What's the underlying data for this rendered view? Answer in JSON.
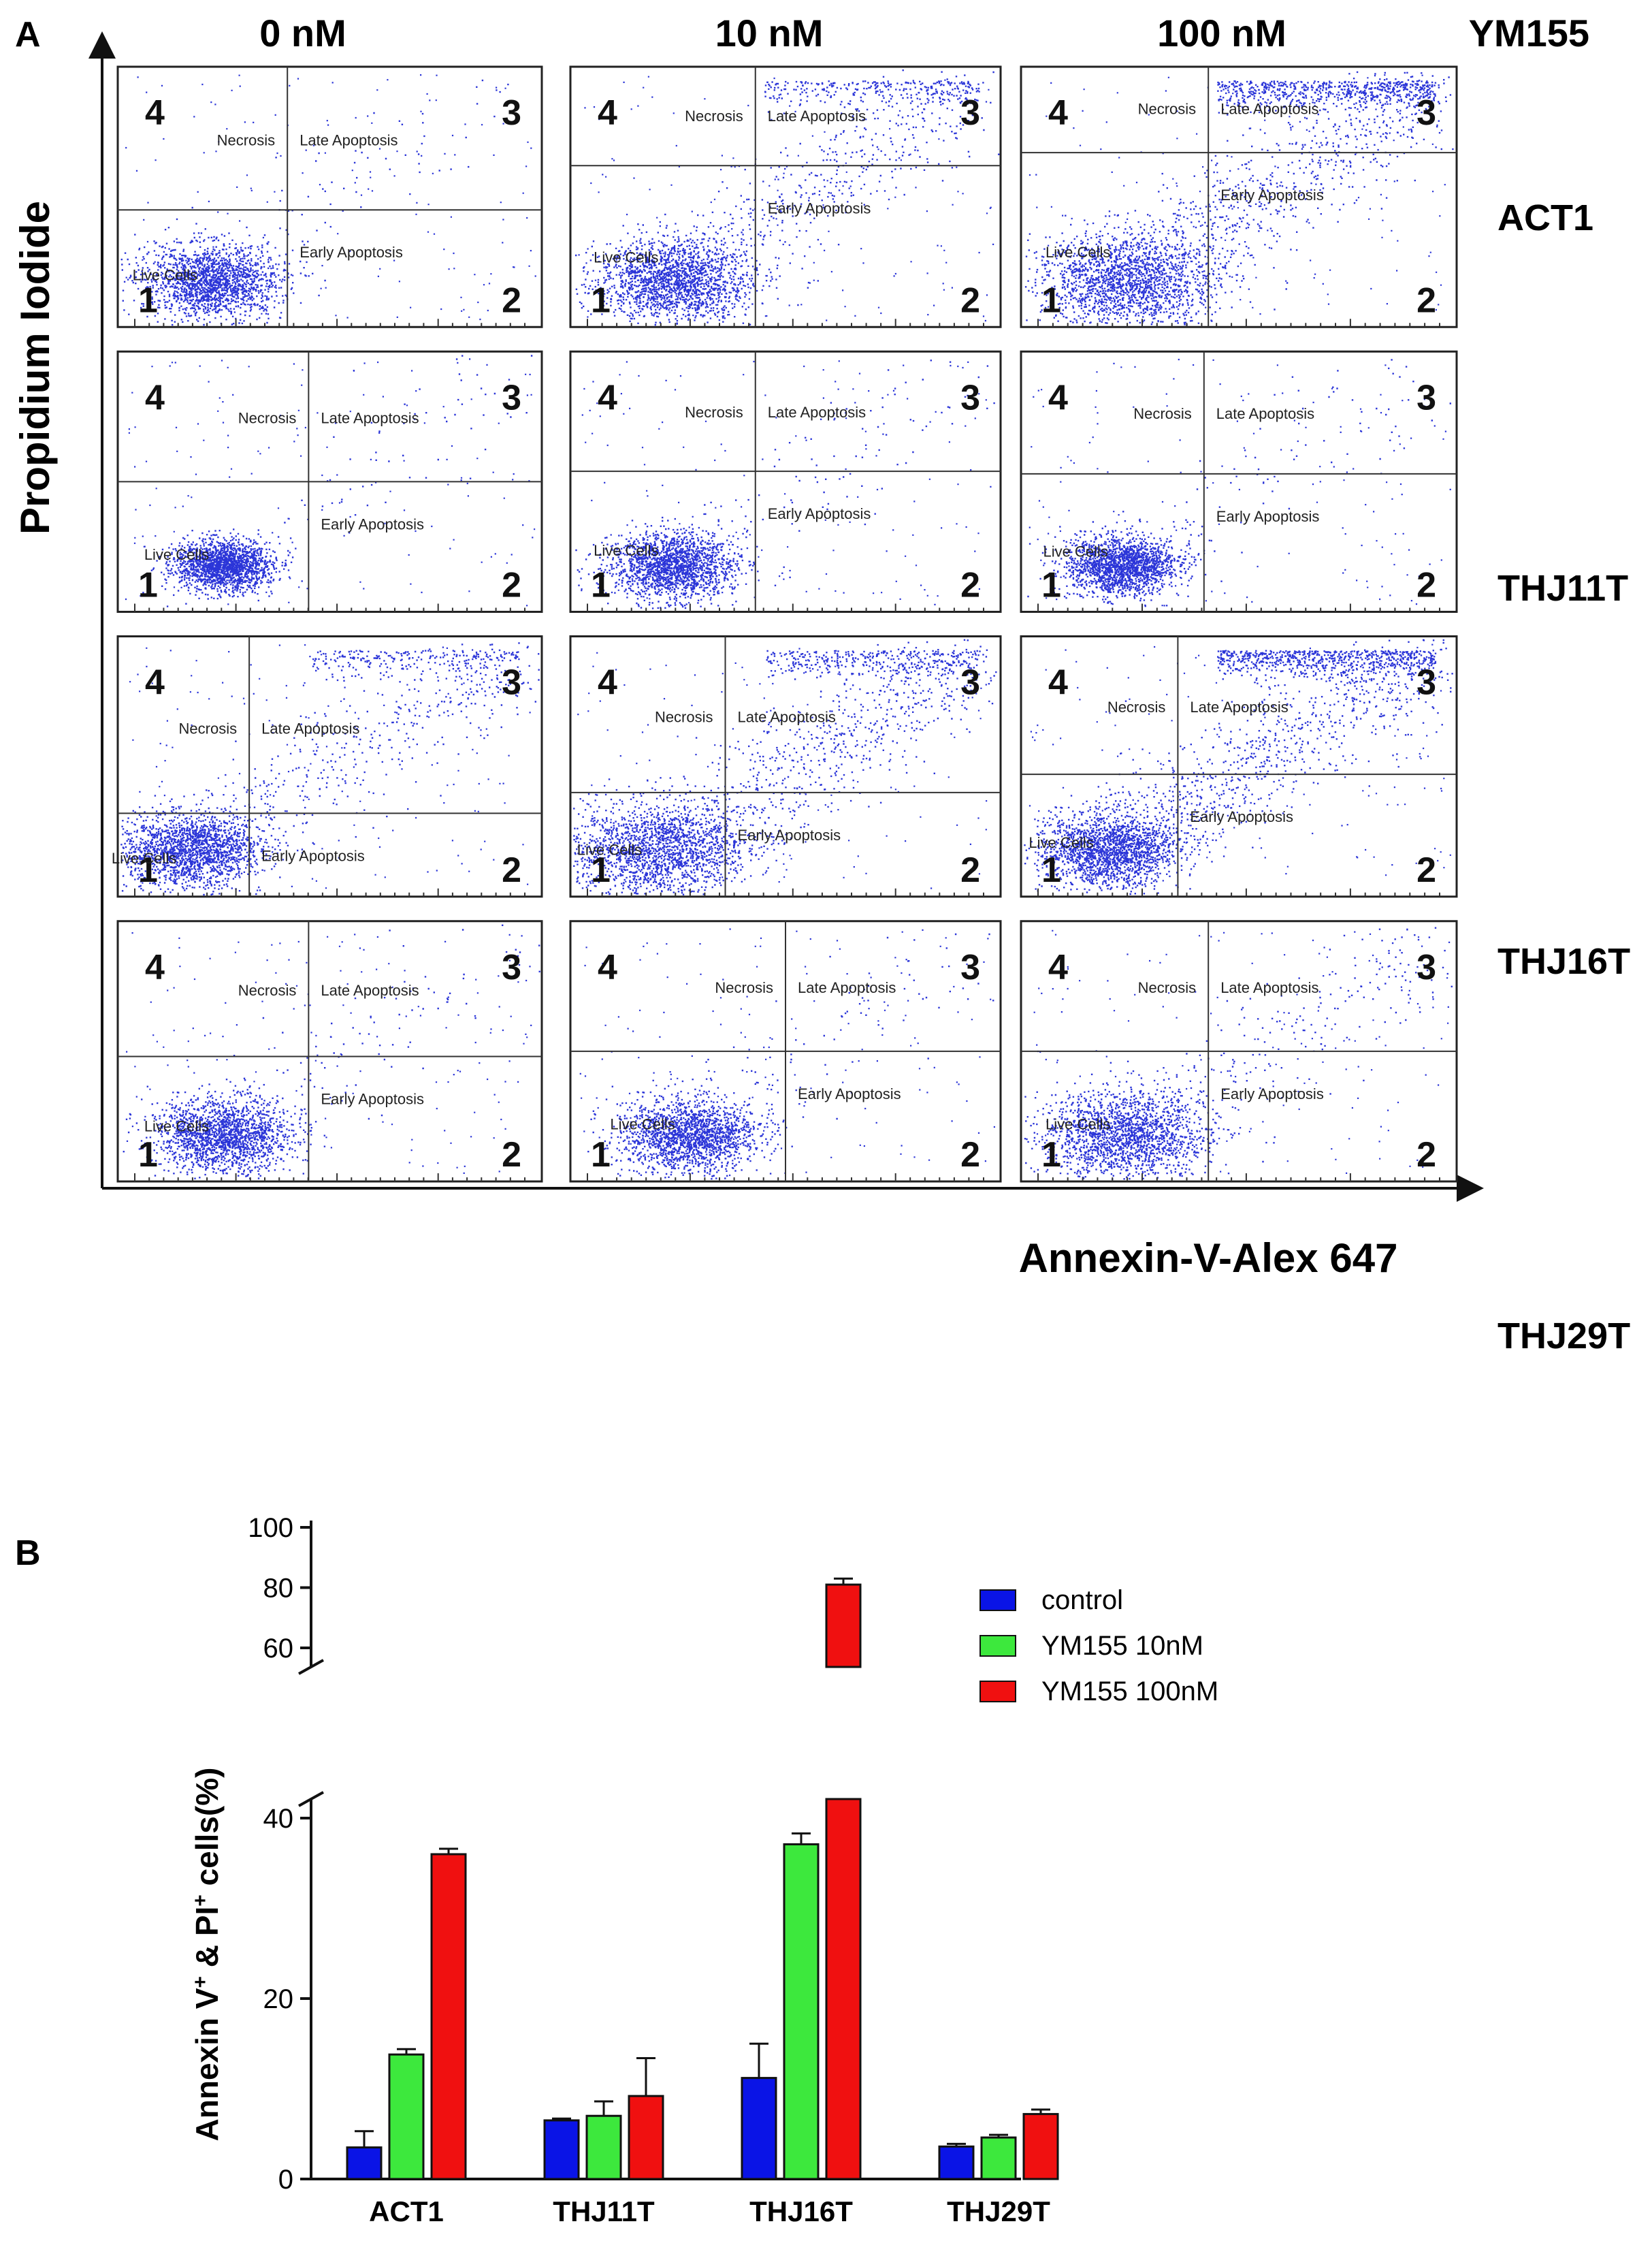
{
  "panel_a": {
    "label": "A",
    "column_headers": [
      "0 nM",
      "10 nM",
      "100 nM"
    ],
    "treatment_label": "YM155",
    "row_labels": [
      "ACT1",
      "THJ11T",
      "THJ16T",
      "THJ29T"
    ],
    "x_axis_label": "Annexin-V-Alex 647",
    "y_axis_label": "Propidium Iodide",
    "quadrant_numbers": [
      "1",
      "2",
      "3",
      "4"
    ],
    "quadrant_names": {
      "q1": "Live Cells",
      "q2": "Early Apoptosis",
      "q3": "Late Apoptosis",
      "q4": "Necrosis"
    },
    "dot_color": "#2b35d8"
  },
  "chart_data": {
    "type": "bar",
    "label": "B",
    "categories": [
      "ACT1",
      "THJ11T",
      "THJ16T",
      "THJ29T"
    ],
    "series": [
      {
        "name": "control",
        "color": "#0a14e6",
        "values": [
          3.5,
          6.5,
          11.2,
          3.6
        ],
        "errors": [
          1.8,
          0.2,
          3.8,
          0.3
        ]
      },
      {
        "name": "YM155 10nM",
        "color": "#3de83d",
        "values": [
          13.8,
          7.0,
          37.1,
          4.6
        ],
        "errors": [
          0.6,
          1.6,
          1.2,
          0.3
        ]
      },
      {
        "name": "YM155 100nM",
        "color": "#f01010",
        "values": [
          36.0,
          9.2,
          81.0,
          7.2
        ],
        "errors": [
          0.6,
          4.2,
          2.0,
          0.5
        ]
      }
    ],
    "ylabel_parts": {
      "a": "Annexin V",
      "sup1": "+",
      "b": " & PI",
      "sup2": "+",
      "c": " cells(%)"
    },
    "ylim_lower": [
      0,
      40
    ],
    "ylim_upper": [
      60,
      100
    ],
    "lower_ticks": [
      "0",
      "20",
      "40"
    ],
    "upper_ticks": [
      "60",
      "80",
      "100"
    ],
    "axis_break": true
  }
}
